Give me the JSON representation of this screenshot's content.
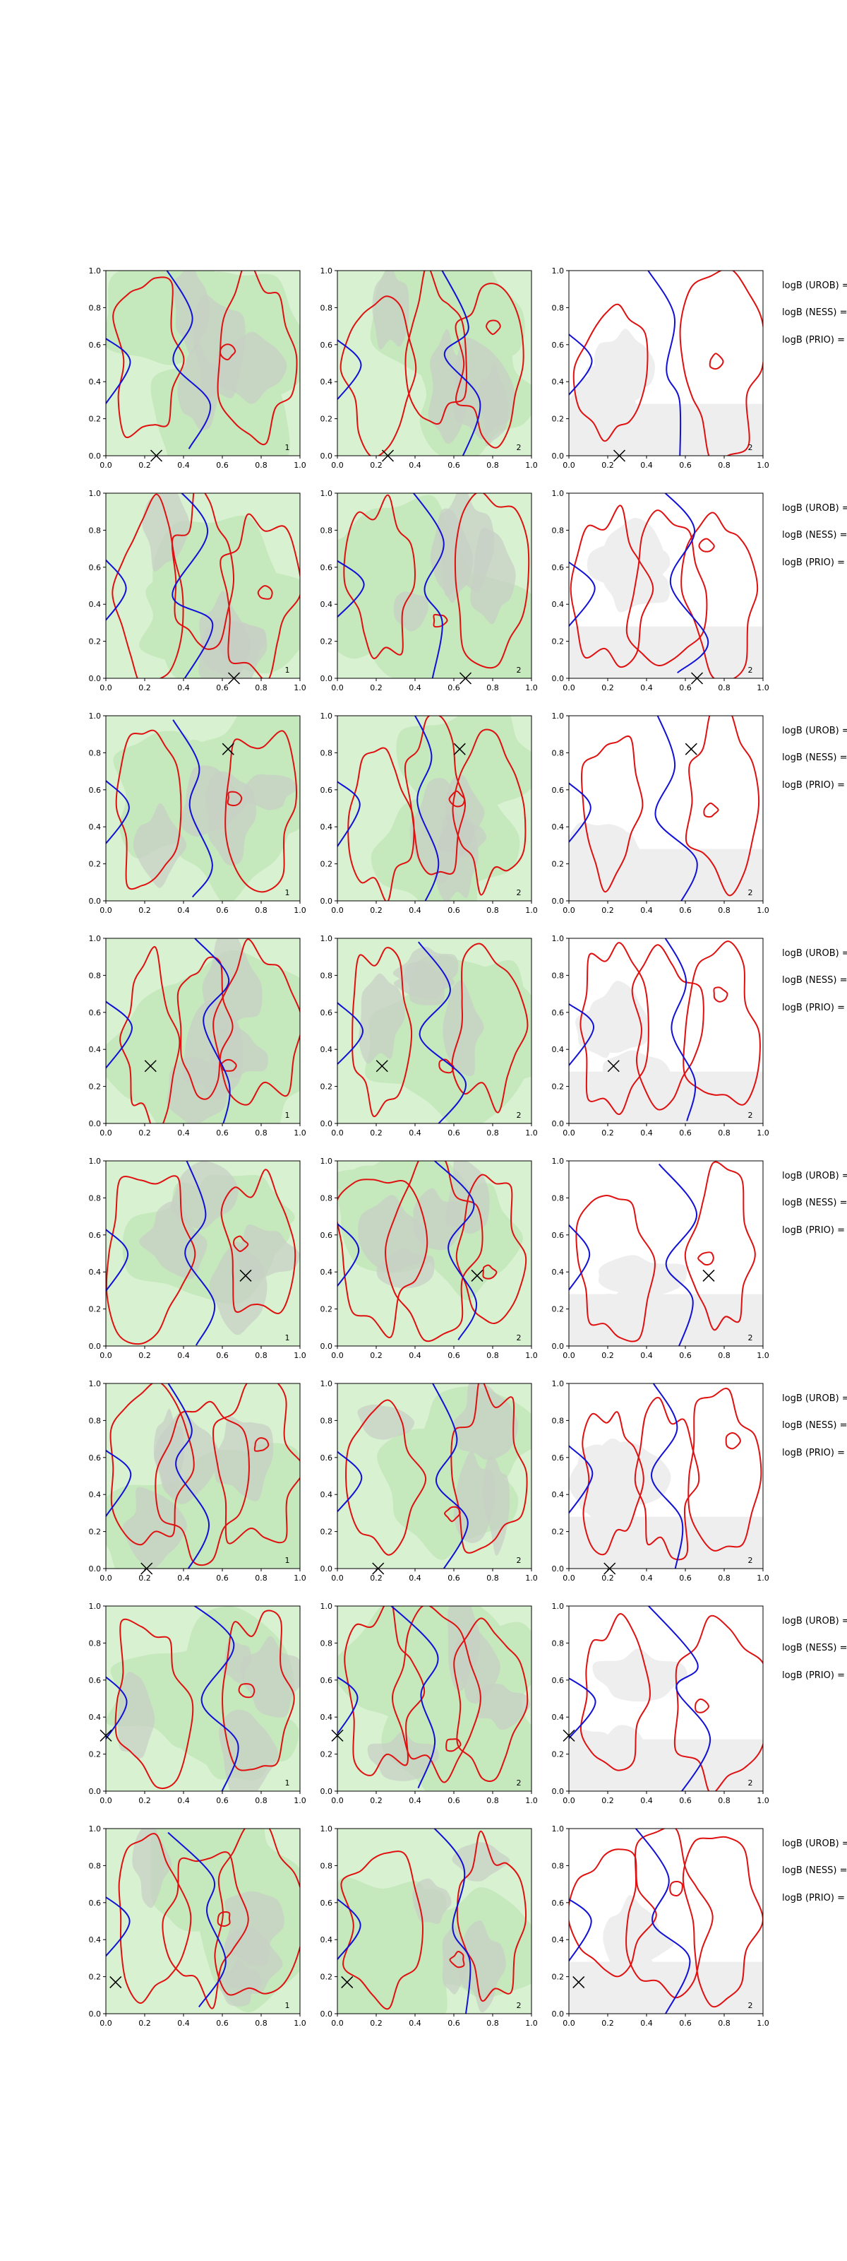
{
  "colors": {
    "background": "#ffffff",
    "green_light": "#d8f2d1",
    "green_mid": "#c5e8bd",
    "gray_fill": "#c7cfc5",
    "gray_fill_white_panel": "#eeeeee",
    "red_contour": "#e01010",
    "blue_contour": "#1010d8",
    "marker": "#000000"
  },
  "chart_data": {
    "type": "contour",
    "layout": {
      "rows": 8,
      "cols": 3
    },
    "xlim": [
      0,
      1
    ],
    "ylim": [
      0,
      1
    ],
    "x_ticks": [
      "0.0",
      "0.2",
      "0.4",
      "0.6",
      "0.8",
      "1.0"
    ],
    "y_ticks": [
      "0.0",
      "0.2",
      "0.4",
      "0.6",
      "0.8",
      "1.0"
    ],
    "panel_corner_labels": [
      "1",
      "2",
      "2"
    ],
    "panel_background": [
      "green",
      "green",
      "white"
    ],
    "side_labels": [
      "logB (UROB) =",
      "logB (NESS) =",
      "logB (PRIO) ="
    ],
    "markers": [
      {
        "x": 0.26,
        "y": 0.0
      },
      {
        "x": 0.66,
        "y": 0.0
      },
      {
        "x": 0.63,
        "y": 0.82
      },
      {
        "x": 0.23,
        "y": 0.31
      },
      {
        "x": 0.72,
        "y": 0.38
      },
      {
        "x": 0.21,
        "y": 0.0
      },
      {
        "x": 0.0,
        "y": 0.3
      },
      {
        "x": 0.05,
        "y": 0.17
      }
    ],
    "grid": false
  }
}
